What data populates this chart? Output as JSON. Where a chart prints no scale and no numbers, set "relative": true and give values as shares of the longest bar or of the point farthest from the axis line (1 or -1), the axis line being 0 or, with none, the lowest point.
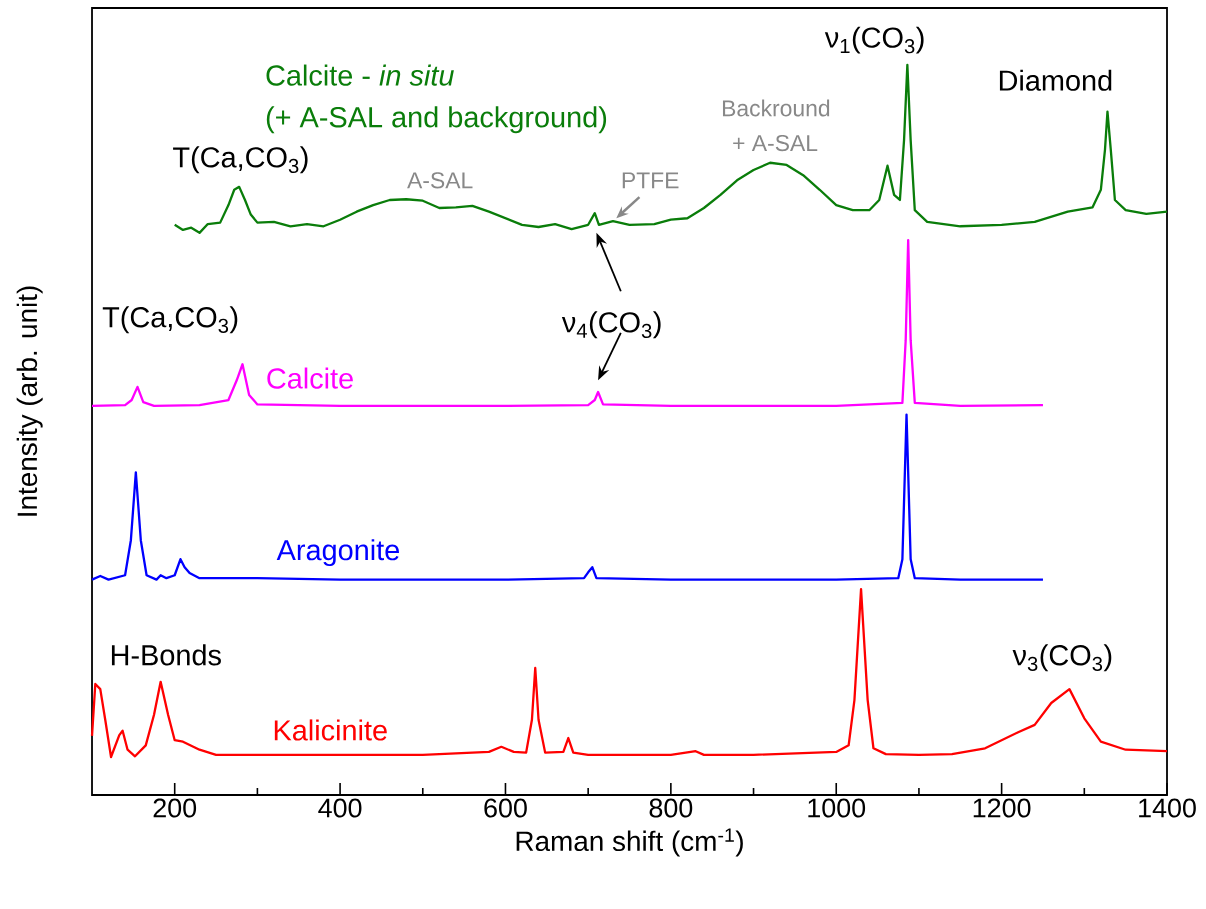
{
  "chart_data": {
    "type": "line",
    "relative": true,
    "xlabel": "Raman shift (cm$^{-1}$)",
    "ylabel": "Intensity (arb. unit)",
    "xlim": [
      100,
      1400
    ],
    "xticks": [
      200,
      {
        "value": 300,
        "label": null
      },
      400,
      {
        "value": 500,
        "label": null
      },
      600,
      {
        "value": 700,
        "label": null
      },
      800,
      {
        "value": 900,
        "label": null
      },
      1000,
      {
        "value": 1100,
        "label": null
      },
      1200,
      {
        "value": 1300,
        "label": null
      },
      1400
    ],
    "series": [
      {
        "name": "Calcite - *in situ*",
        "color": "#0a7d0a",
        "x": [
          200,
          210,
          220,
          230,
          240,
          255,
          265,
          272,
          278,
          285,
          292,
          300,
          320,
          340,
          360,
          380,
          400,
          420,
          440,
          460,
          480,
          500,
          520,
          540,
          560,
          580,
          600,
          620,
          640,
          660,
          680,
          700,
          708,
          713,
          730,
          750,
          780,
          800,
          820,
          840,
          860,
          880,
          900,
          920,
          940,
          960,
          980,
          1000,
          1020,
          1040,
          1052,
          1062,
          1070,
          1077,
          1082,
          1086,
          1090,
          1095,
          1110,
          1150,
          1200,
          1240,
          1280,
          1310,
          1320,
          1325,
          1328,
          1332,
          1337,
          1350,
          1375,
          1400
        ],
        "values": [
          0.781,
          0.774,
          0.777,
          0.77,
          0.782,
          0.784,
          0.808,
          0.829,
          0.833,
          0.815,
          0.795,
          0.784,
          0.785,
          0.779,
          0.782,
          0.779,
          0.788,
          0.799,
          0.808,
          0.815,
          0.816,
          0.814,
          0.804,
          0.805,
          0.807,
          0.799,
          0.79,
          0.781,
          0.778,
          0.782,
          0.775,
          0.781,
          0.797,
          0.781,
          0.786,
          0.781,
          0.782,
          0.788,
          0.79,
          0.804,
          0.822,
          0.842,
          0.856,
          0.866,
          0.863,
          0.849,
          0.829,
          0.808,
          0.801,
          0.801,
          0.815,
          0.862,
          0.822,
          0.815,
          0.897,
          1,
          0.897,
          0.801,
          0.785,
          0.779,
          0.781,
          0.785,
          0.799,
          0.805,
          0.829,
          0.884,
          0.936,
          0.884,
          0.815,
          0.801,
          0.796,
          0.799
        ]
      },
      {
        "name": "Calcite",
        "color": "#ff00ff",
        "x": [
          100,
          140,
          148,
          155,
          162,
          175,
          230,
          265,
          275,
          282,
          290,
          300,
          400,
          600,
          700,
          708,
          712,
          718,
          800,
          1000,
          1080,
          1084,
          1087,
          1090,
          1095,
          1150,
          1250
        ],
        "values": [
          0.533,
          0.534,
          0.541,
          0.559,
          0.538,
          0.533,
          0.534,
          0.541,
          0.568,
          0.59,
          0.548,
          0.535,
          0.533,
          0.533,
          0.534,
          0.541,
          0.552,
          0.535,
          0.533,
          0.533,
          0.537,
          0.623,
          0.76,
          0.623,
          0.537,
          0.533,
          0.534
        ]
      },
      {
        "name": "Aragonite",
        "color": "#0000ff",
        "x": [
          100,
          110,
          120,
          140,
          147,
          153,
          159,
          166,
          178,
          183,
          190,
          200,
          207,
          212,
          218,
          230,
          300,
          400,
          600,
          695,
          700,
          705,
          710,
          800,
          1000,
          1075,
          1080,
          1085,
          1090,
          1095,
          1150,
          1250
        ],
        "values": [
          0.295,
          0.3,
          0.295,
          0.301,
          0.349,
          0.442,
          0.349,
          0.301,
          0.295,
          0.301,
          0.297,
          0.301,
          0.323,
          0.312,
          0.304,
          0.297,
          0.297,
          0.295,
          0.295,
          0.297,
          0.305,
          0.312,
          0.297,
          0.295,
          0.295,
          0.297,
          0.323,
          0.521,
          0.323,
          0.297,
          0.295,
          0.295
        ]
      },
      {
        "name": "Kalicinite",
        "color": "#ff0000",
        "x": [
          100,
          104,
          110,
          116,
          123,
          133,
          137,
          143,
          152,
          165,
          175,
          183,
          192,
          200,
          210,
          230,
          250,
          300,
          400,
          500,
          580,
          595,
          610,
          625,
          632,
          636,
          640,
          648,
          670,
          676,
          682,
          700,
          800,
          830,
          840,
          900,
          1000,
          1015,
          1022,
          1030,
          1038,
          1045,
          1060,
          1100,
          1140,
          1180,
          1220,
          1240,
          1260,
          1282,
          1300,
          1320,
          1350,
          1400
        ],
        "values": [
          0.081,
          0.152,
          0.145,
          0.103,
          0.052,
          0.082,
          0.088,
          0.062,
          0.053,
          0.068,
          0.11,
          0.155,
          0.11,
          0.075,
          0.073,
          0.062,
          0.055,
          0.055,
          0.055,
          0.055,
          0.059,
          0.066,
          0.059,
          0.058,
          0.103,
          0.174,
          0.103,
          0.058,
          0.059,
          0.078,
          0.058,
          0.055,
          0.055,
          0.06,
          0.055,
          0.055,
          0.059,
          0.068,
          0.13,
          0.282,
          0.13,
          0.064,
          0.056,
          0.055,
          0.056,
          0.064,
          0.086,
          0.096,
          0.126,
          0.145,
          0.105,
          0.073,
          0.062,
          0.06
        ]
      }
    ],
    "annotations": [
      "(+ A-SAL and background)",
      "T(Ca,CO$_{3}$)",
      "A-SAL",
      "PTFE",
      "Backround",
      "+ A-SAL",
      "ν$_{1}$(CO$_{3}$)",
      "Diamond",
      "T(Ca,CO$_{3}$)",
      "ν$_{4}$(CO$_{3}$)",
      "H-Bonds",
      "ν$_{3}$(CO$_{3}$)"
    ]
  }
}
